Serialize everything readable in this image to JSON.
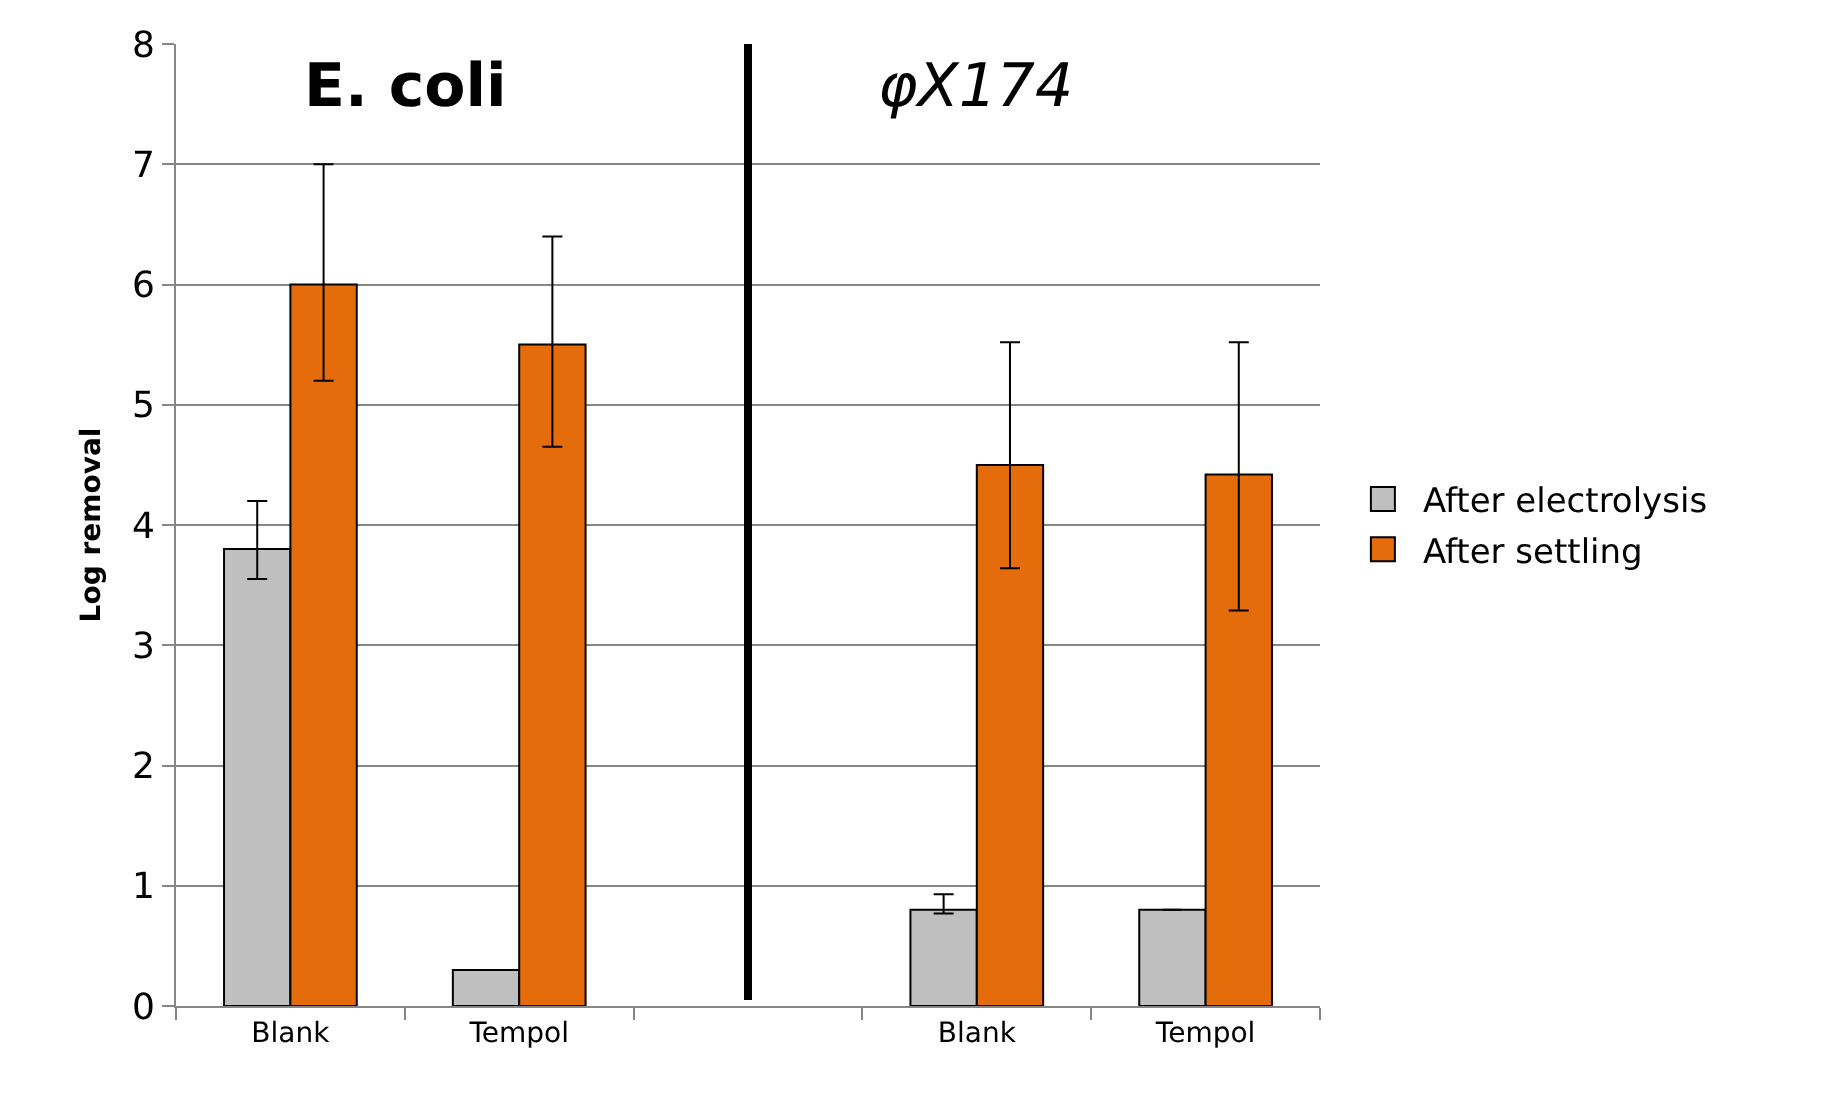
{
  "chart_data": {
    "type": "bar",
    "ylabel": "Log removal",
    "categories": [
      "Blank",
      "Tempol",
      null,
      "Blank",
      "Tempol"
    ],
    "series": [
      {
        "name": "After electrolysis",
        "color": "#bfbfbf",
        "values": [
          3.8,
          0.3,
          null,
          0.8,
          0.8
        ],
        "errors": [
          [
            3.55,
            4.2
          ],
          null,
          null,
          [
            0.77,
            0.93
          ],
          null
        ]
      },
      {
        "name": "After settling",
        "color": "#e46c0a",
        "values": [
          6.0,
          5.5,
          null,
          4.5,
          4.42
        ],
        "errors": [
          [
            5.2,
            7.0
          ],
          [
            4.65,
            6.4
          ],
          null,
          [
            3.64,
            5.52
          ],
          [
            3.29,
            5.52
          ]
        ]
      }
    ],
    "annotations": [
      "E. coli",
      "φX174"
    ],
    "ylim": [
      0,
      8
    ],
    "yticks": [
      0,
      1,
      2,
      3,
      4,
      5,
      6,
      7,
      8
    ],
    "grid": "y",
    "legend": "right"
  }
}
